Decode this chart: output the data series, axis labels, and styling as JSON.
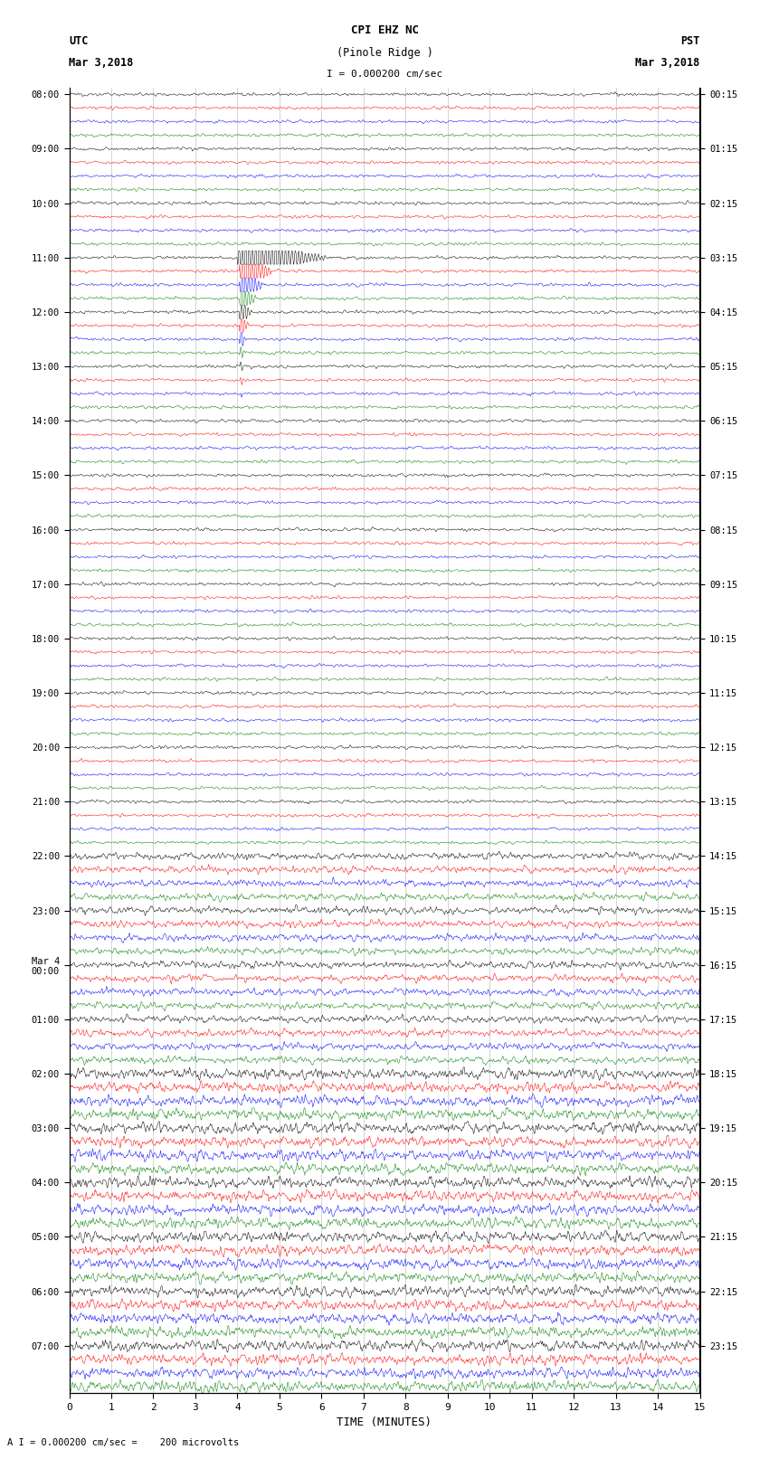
{
  "title_line1": "CPI EHZ NC",
  "title_line2": "(Pinole Ridge )",
  "scale_label": "I = 0.000200 cm/sec",
  "footer_label": "A I = 0.000200 cm/sec =    200 microvolts",
  "xlabel": "TIME (MINUTES)",
  "left_header_line1": "UTC",
  "left_header_line2": "Mar 3,2018",
  "right_header_line1": "PST",
  "right_header_line2": "Mar 3,2018",
  "left_hour_labels": [
    "08:00",
    "09:00",
    "10:00",
    "11:00",
    "12:00",
    "13:00",
    "14:00",
    "15:00",
    "16:00",
    "17:00",
    "18:00",
    "19:00",
    "20:00",
    "21:00",
    "22:00",
    "23:00",
    "Mar 4\n00:00",
    "01:00",
    "02:00",
    "03:00",
    "04:00",
    "05:00",
    "06:00",
    "07:00"
  ],
  "right_hour_labels": [
    "00:15",
    "01:15",
    "02:15",
    "03:15",
    "04:15",
    "05:15",
    "06:15",
    "07:15",
    "08:15",
    "09:15",
    "10:15",
    "11:15",
    "12:15",
    "13:15",
    "14:15",
    "15:15",
    "16:15",
    "17:15",
    "18:15",
    "19:15",
    "20:15",
    "21:15",
    "22:15",
    "23:15"
  ],
  "colors": [
    "black",
    "red",
    "blue",
    "green"
  ],
  "n_hours": 24,
  "traces_per_hour": 4,
  "time_minutes": 15,
  "background_color": "white",
  "noise_amplitude_early": 0.035,
  "noise_amplitude_mid": 0.08,
  "noise_amplitude_late": 0.12,
  "noise_transition_hour": 14,
  "noise_high_hour": 18,
  "earthquake_trace": 12,
  "earthquake_minute": 4.1,
  "earthquake_spike_amplitude": 8.0,
  "earthquake_decay_traces": 14,
  "small_eq_trace": 97,
  "small_eq_minute": 8.5,
  "small_eq_amplitude": 0.4,
  "minute_line_color": "#aaaaaa",
  "minute_line_alpha": 0.7,
  "minute_linewidth": 0.5
}
